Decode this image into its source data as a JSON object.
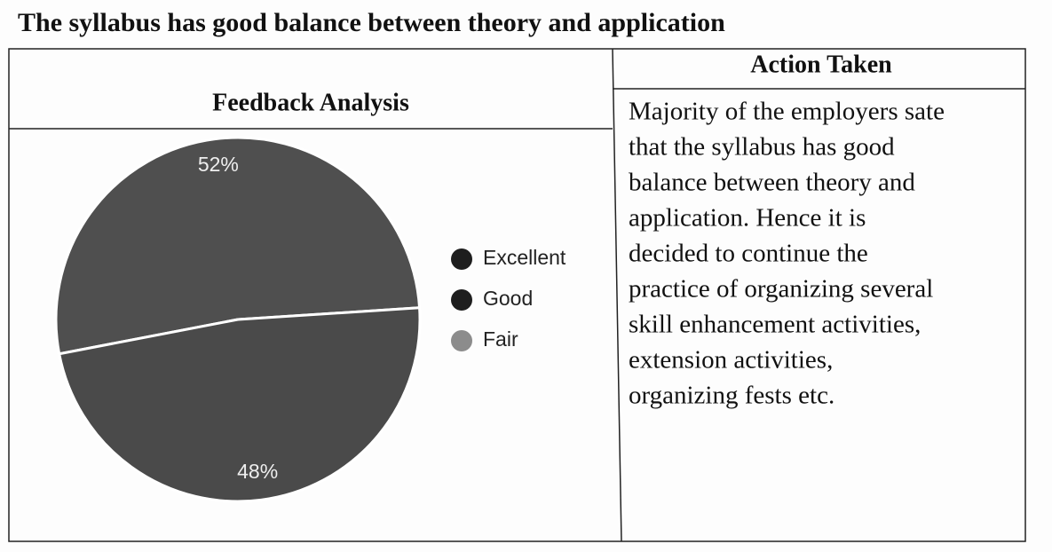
{
  "title": "The syllabus has good balance between theory and application",
  "table": {
    "headers": [
      "Feedback Analysis",
      "Action Taken"
    ],
    "action_lines": [
      "Majority of the employers sate",
      "that the syllabus has good",
      "balance between theory and",
      "application. Hence it is",
      "decided to continue the",
      "practice of organizing several",
      "skill enhancement activities,",
      "extension activities,",
      "organizing fests etc."
    ]
  },
  "chart_data": {
    "type": "pie",
    "categories": [
      "Excellent",
      "Good",
      "Fair"
    ],
    "values": [
      52,
      48,
      0
    ],
    "value_labels": [
      "52%",
      "48%",
      null
    ],
    "colors": [
      "#4f4f4f",
      "#4a4a4a",
      "#8c8c8c"
    ],
    "legend_colors": [
      "#1e1e1e",
      "#1e1e1e",
      "#8c8c8c"
    ],
    "legend": "right"
  }
}
